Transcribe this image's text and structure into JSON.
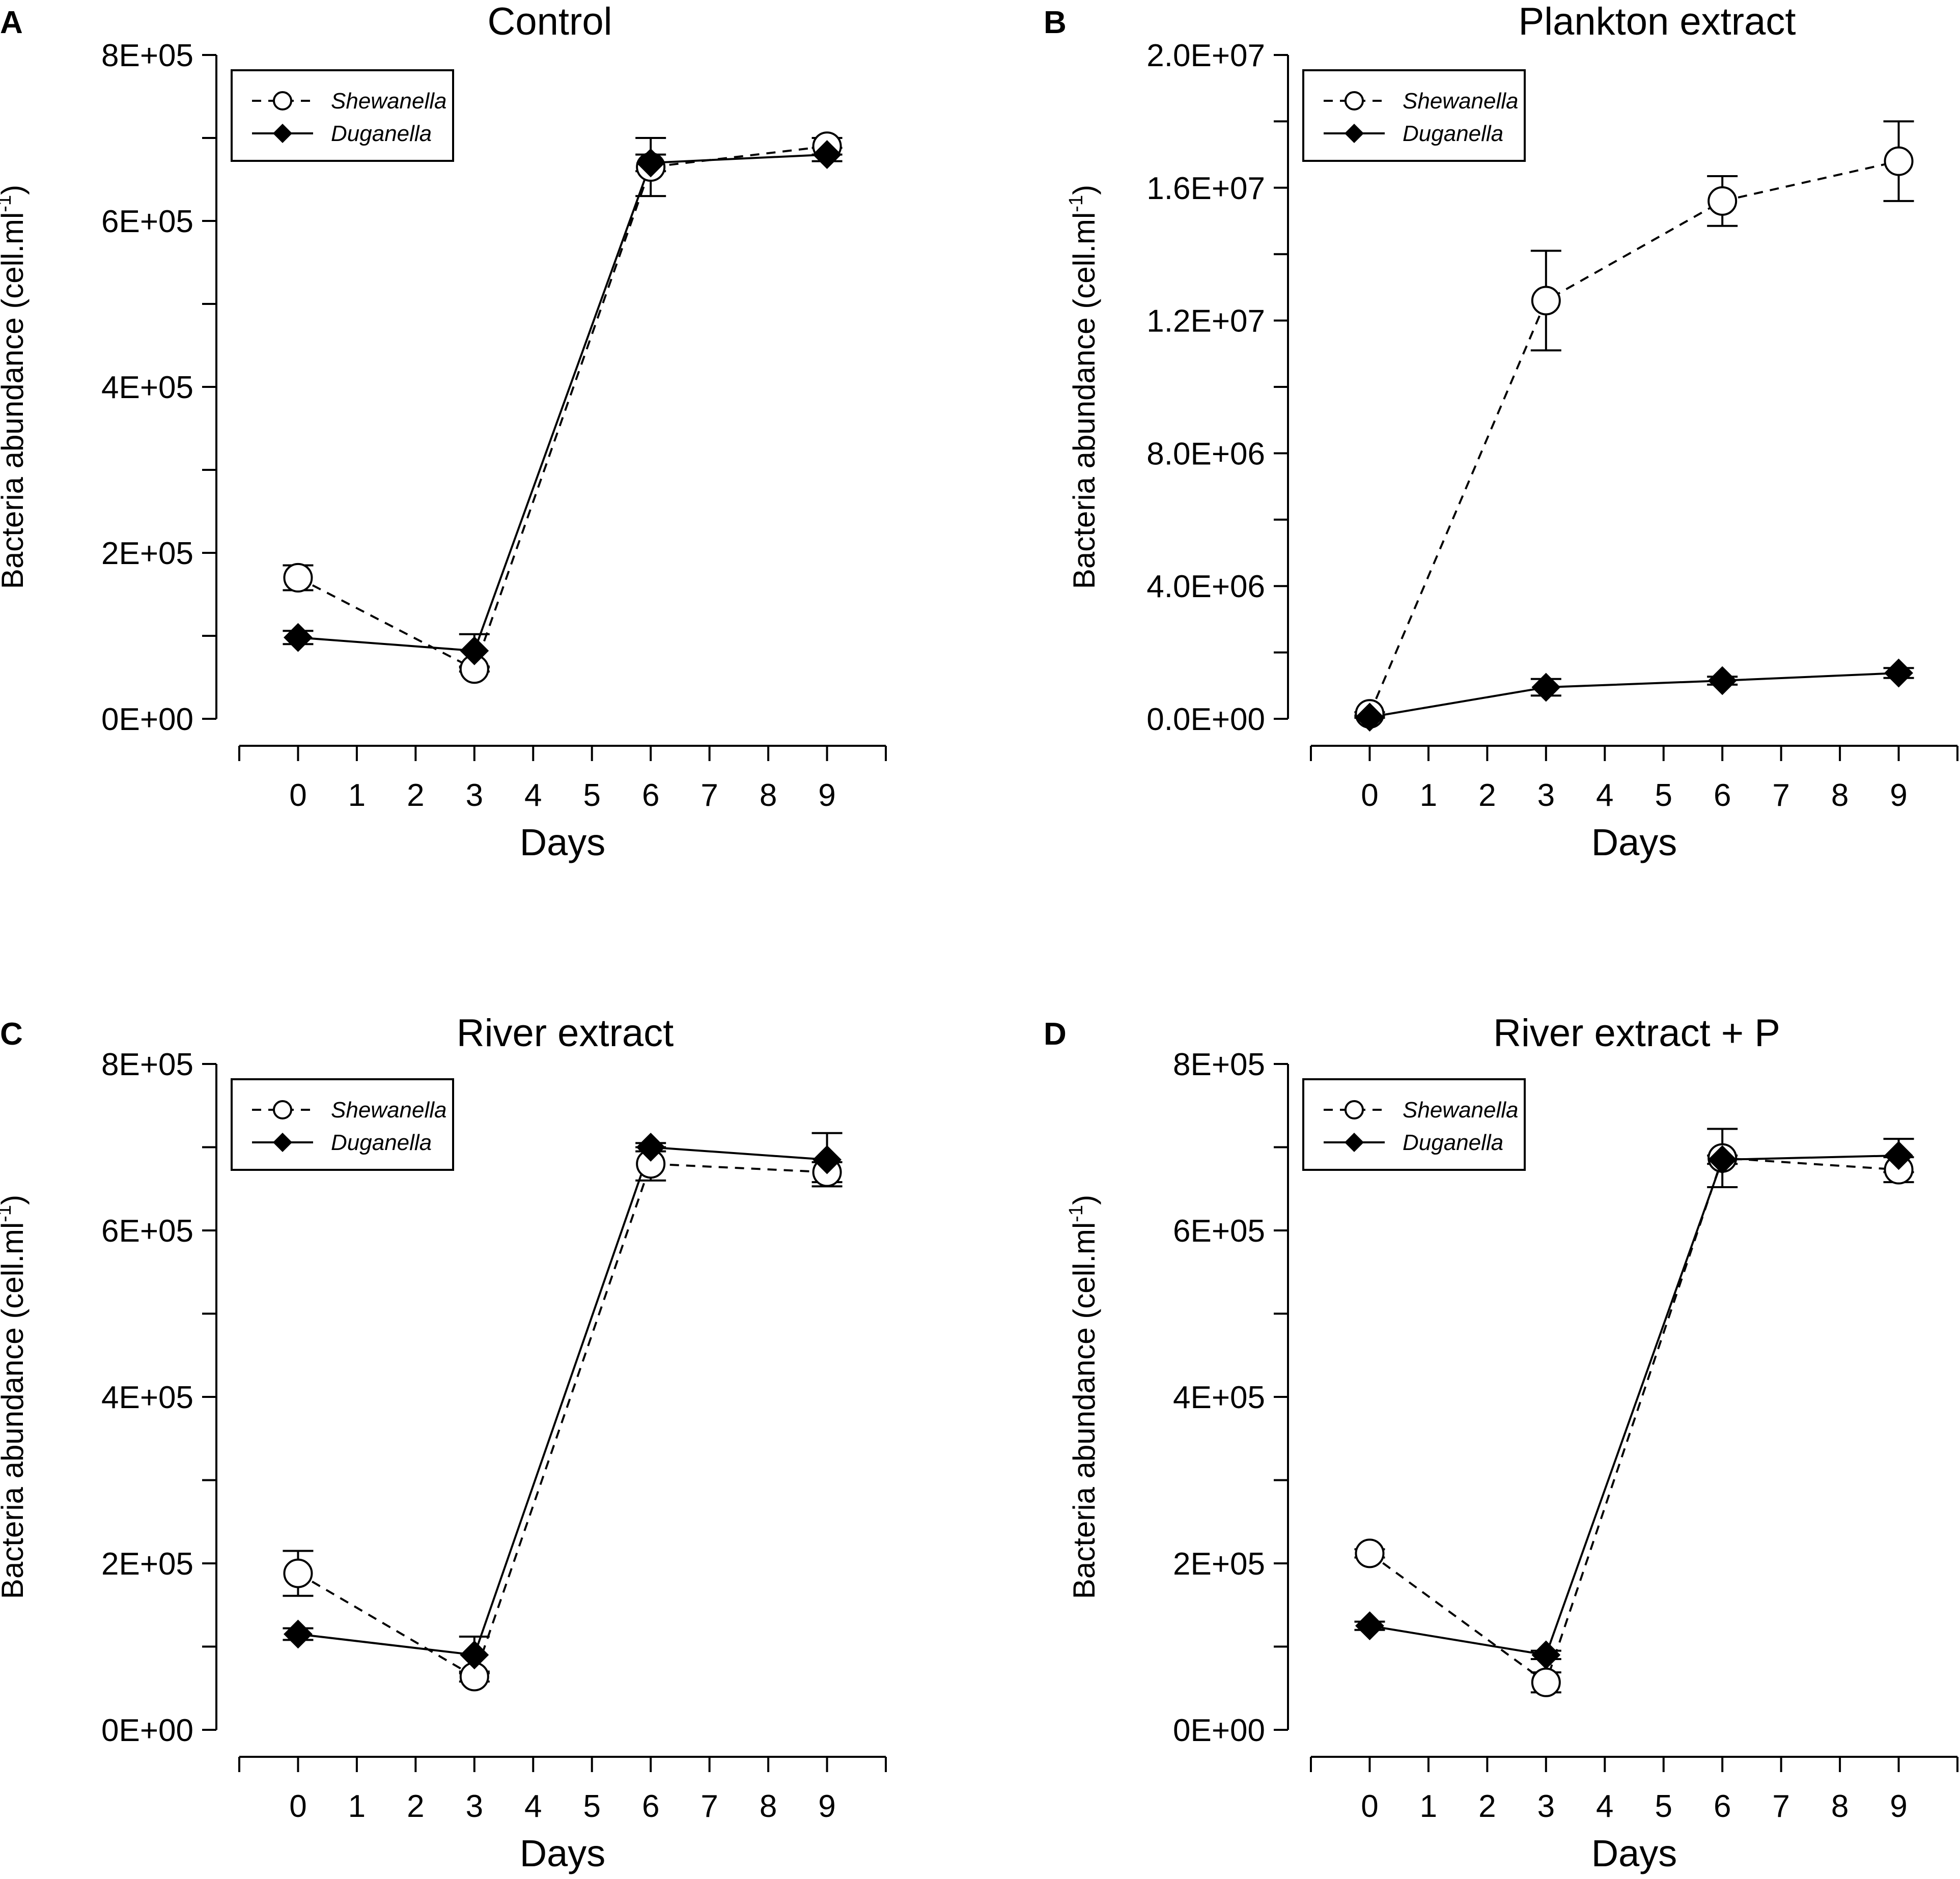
{
  "chart_data": [
    {
      "type": "line",
      "panel_letter": "A",
      "title": "Control",
      "xlabel": "Days",
      "ylabel": "Bacteria abundance (cell.ml",
      "ylabel_sup": "-1",
      "ylabel_end": ")",
      "xlim": [
        -1,
        10
      ],
      "xticks": [
        0,
        1,
        2,
        3,
        4,
        5,
        6,
        7,
        8,
        9
      ],
      "xtick_labels": [
        "0",
        "1",
        "2",
        "3",
        "4",
        "5",
        "6",
        "7",
        "8",
        "9"
      ],
      "ylim": [
        0,
        800000
      ],
      "yticks": [
        0,
        100000,
        200000,
        300000,
        400000,
        500000,
        600000,
        700000,
        800000
      ],
      "ytick_labels": [
        "0E+00",
        "",
        "2E+05",
        "",
        "4E+05",
        "",
        "6E+05",
        "",
        "8E+05"
      ],
      "legend_position": "top-left",
      "series": [
        {
          "name": "Shewanella",
          "style": "dashed",
          "marker": "open-circle",
          "x": [
            0,
            3,
            6,
            9
          ],
          "values": [
            170000,
            60000,
            665000,
            690000
          ],
          "err": [
            15000,
            3000,
            35000,
            10000
          ]
        },
        {
          "name": "Duganella",
          "style": "solid",
          "marker": "filled-diamond",
          "x": [
            0,
            3,
            6,
            9
          ],
          "values": [
            98000,
            82000,
            670000,
            680000
          ],
          "err": [
            8000,
            20000,
            10000,
            8000
          ]
        }
      ]
    },
    {
      "type": "line",
      "panel_letter": "B",
      "title": "Plankton extract",
      "xlabel": "Days",
      "ylabel": "Bacteria abundance (cell.ml",
      "ylabel_sup": "-1",
      "ylabel_end": ")",
      "xlim": [
        -1,
        10
      ],
      "xticks": [
        0,
        1,
        2,
        3,
        4,
        5,
        6,
        7,
        8,
        9
      ],
      "xtick_labels": [
        "0",
        "1",
        "2",
        "3",
        "4",
        "5",
        "6",
        "7",
        "8",
        "9"
      ],
      "ylim": [
        0,
        20000000
      ],
      "yticks": [
        0,
        2000000,
        4000000,
        6000000,
        8000000,
        10000000,
        12000000,
        14000000,
        16000000,
        18000000,
        20000000
      ],
      "ytick_labels": [
        "0.0E+00",
        "",
        "4.0E+06",
        "",
        "8.0E+06",
        "",
        "1.2E+07",
        "",
        "1.6E+07",
        "",
        "2.0E+07"
      ],
      "legend_position": "top-left",
      "series": [
        {
          "name": "Shewanella",
          "style": "dashed",
          "marker": "open-circle",
          "x": [
            0,
            3,
            6,
            9
          ],
          "values": [
            150000,
            12600000,
            15600000,
            16800000
          ],
          "err": [
            50000,
            1500000,
            750000,
            1200000
          ]
        },
        {
          "name": "Duganella",
          "style": "solid",
          "marker": "filled-diamond",
          "x": [
            0,
            3,
            6,
            9
          ],
          "values": [
            50000,
            950000,
            1150000,
            1380000
          ],
          "err": [
            20000,
            250000,
            120000,
            150000
          ]
        }
      ]
    },
    {
      "type": "line",
      "panel_letter": "C",
      "title": "River extract",
      "xlabel": "Days",
      "ylabel": "Bacteria abundance (cell.ml",
      "ylabel_sup": "-1",
      "ylabel_end": ")",
      "xlim": [
        -1,
        10
      ],
      "xticks": [
        0,
        1,
        2,
        3,
        4,
        5,
        6,
        7,
        8,
        9
      ],
      "xtick_labels": [
        "0",
        "1",
        "2",
        "3",
        "4",
        "5",
        "6",
        "7",
        "8",
        "9"
      ],
      "ylim": [
        0,
        800000
      ],
      "yticks": [
        0,
        100000,
        200000,
        300000,
        400000,
        500000,
        600000,
        700000,
        800000
      ],
      "ytick_labels": [
        "0E+00",
        "",
        "2E+05",
        "",
        "4E+05",
        "",
        "6E+05",
        "",
        "8E+05"
      ],
      "legend_position": "top-left",
      "series": [
        {
          "name": "Shewanella",
          "style": "dashed",
          "marker": "open-circle",
          "x": [
            0,
            3,
            6,
            9
          ],
          "values": [
            188000,
            64000,
            680000,
            670000
          ],
          "err": [
            27000,
            6000,
            20000,
            12000
          ]
        },
        {
          "name": "Duganella",
          "style": "solid",
          "marker": "filled-diamond",
          "x": [
            0,
            3,
            6,
            9
          ],
          "values": [
            115000,
            90000,
            700000,
            685000
          ],
          "err": [
            7000,
            22000,
            5000,
            32000
          ]
        }
      ]
    },
    {
      "type": "line",
      "panel_letter": "D",
      "title": "River extract + P",
      "xlabel": "Days",
      "ylabel": "Bacteria abundance (cell.ml",
      "ylabel_sup": "-1",
      "ylabel_end": ")",
      "xlim": [
        -1,
        10
      ],
      "xticks": [
        0,
        1,
        2,
        3,
        4,
        5,
        6,
        7,
        8,
        9
      ],
      "xtick_labels": [
        "0",
        "1",
        "2",
        "3",
        "4",
        "5",
        "6",
        "7",
        "8",
        "9"
      ],
      "ylim": [
        0,
        800000
      ],
      "yticks": [
        0,
        100000,
        200000,
        300000,
        400000,
        500000,
        600000,
        700000,
        800000
      ],
      "ytick_labels": [
        "0E+00",
        "",
        "2E+05",
        "",
        "4E+05",
        "",
        "6E+05",
        "",
        "8E+05"
      ],
      "legend_position": "top-left",
      "series": [
        {
          "name": "Shewanella",
          "style": "dashed",
          "marker": "open-circle",
          "x": [
            0,
            3,
            6,
            9
          ],
          "values": [
            212000,
            57000,
            687000,
            673000
          ],
          "err": [
            5000,
            12000,
            35000,
            15000
          ]
        },
        {
          "name": "Duganella",
          "style": "solid",
          "marker": "filled-diamond",
          "x": [
            0,
            3,
            6,
            9
          ],
          "values": [
            125000,
            90000,
            685000,
            690000
          ],
          "err": [
            5000,
            5000,
            5000,
            20000
          ]
        }
      ]
    }
  ]
}
